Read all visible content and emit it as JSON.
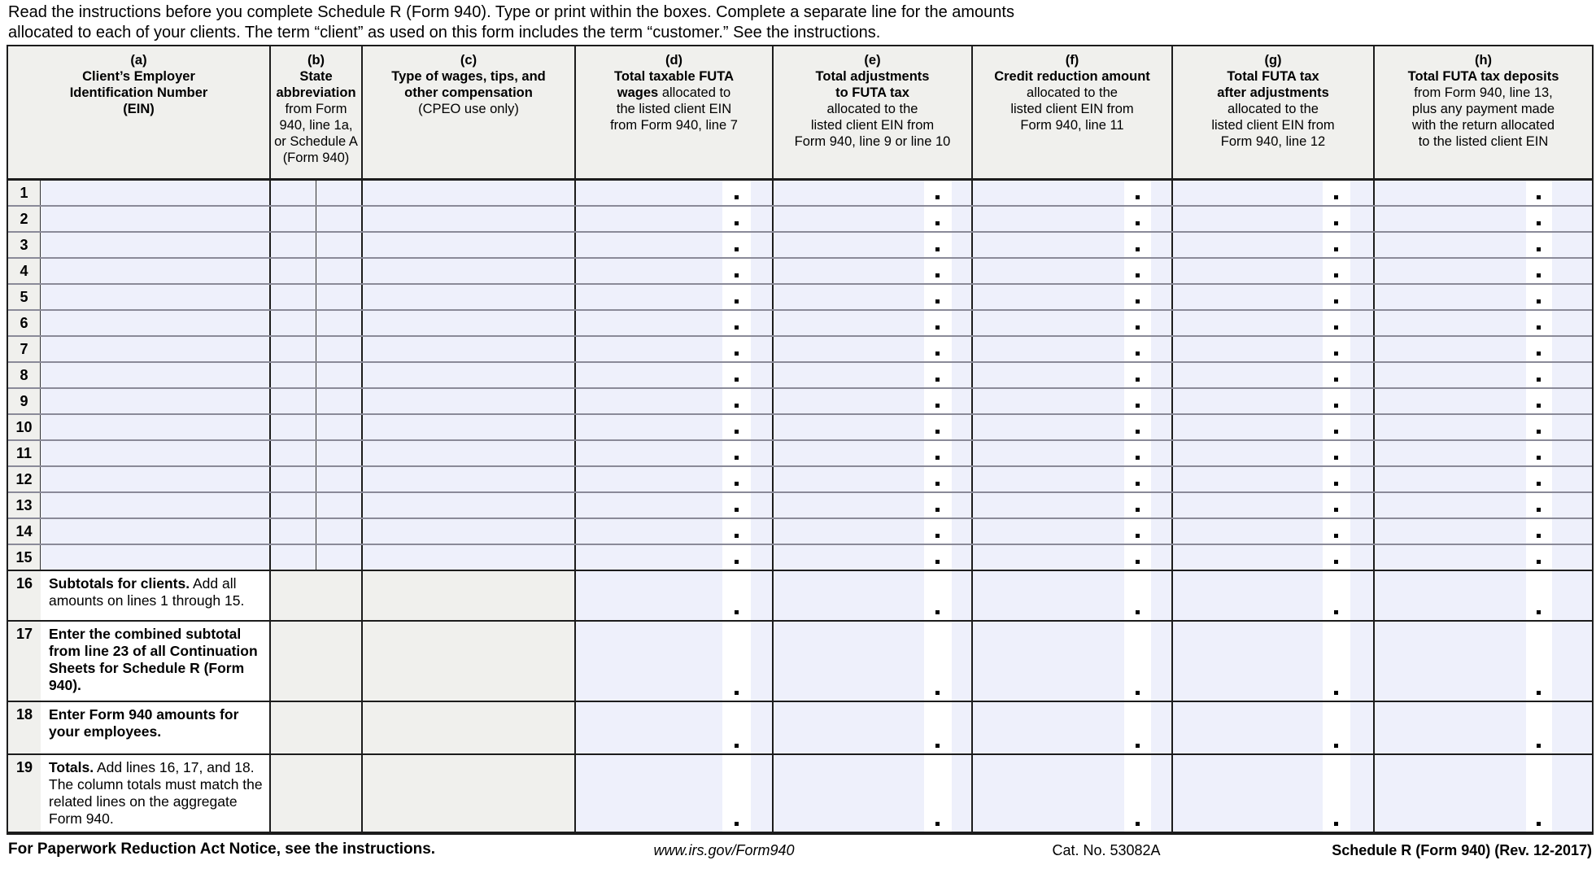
{
  "page": {
    "instructions": "Read the instructions before you complete Schedule R (Form 940). Type or print within the boxes. Complete a separate line for the amounts\nallocated to each of your clients. The term “client” as used on this form includes the term “customer.” See the instructions.",
    "footer": {
      "left": "For Paperwork Reduction Act Notice, see the instructions.",
      "url": "www.irs.gov/Form940",
      "cat": "Cat. No. 53082A",
      "right": "Schedule R (Form 940) (Rev. 12-2017)"
    }
  },
  "table": {
    "headers": [
      {
        "letter": "(a)",
        "bold": "Client’s Employer\nIdentification Number\n(EIN)",
        "rest": ""
      },
      {
        "letter": "(b)",
        "bold": "State\nabbreviation",
        "rest": "\nfrom Form\n940, line 1a,\nor Schedule A\n(Form 940)"
      },
      {
        "letter": "(c)",
        "bold": "Type of wages, tips, and\nother compensation",
        "rest": "\n(CPEO use only)"
      },
      {
        "letter": "(d)",
        "bold": "Total taxable FUTA\nwages",
        "rest": " allocated to\nthe listed client EIN\nfrom Form 940, line 7"
      },
      {
        "letter": "(e)",
        "bold": "Total adjustments\nto FUTA tax",
        "rest": "\nallocated to the\nlisted client EIN from\nForm 940, line 9 or line 10"
      },
      {
        "letter": "(f)",
        "bold": "Credit reduction amount",
        "rest": "\nallocated to the\nlisted client EIN from\nForm 940, line 11"
      },
      {
        "letter": "(g)",
        "bold": "Total FUTA tax\nafter adjustments",
        "rest": "\nallocated to the\nlisted client EIN from\nForm 940, line 12"
      },
      {
        "letter": "(h)",
        "bold": "Total FUTA tax deposits",
        "rest": "\nfrom Form 940, line 13,\nplus any payment made\nwith the return allocated\nto the listed client EIN"
      }
    ],
    "row_numbers": [
      "1",
      "2",
      "3",
      "4",
      "5",
      "6",
      "7",
      "8",
      "9",
      "10",
      "11",
      "12",
      "13",
      "14",
      "15"
    ],
    "summary_rows": [
      {
        "num": "16",
        "bold": "Subtotals for clients.",
        "rest": " Add all amounts on lines 1 through 15."
      },
      {
        "num": "17",
        "bold": "Enter the combined subtotal from line 23 of all Continuation Sheets for Schedule R (Form 940).",
        "rest": ""
      },
      {
        "num": "18",
        "bold": "Enter Form 940 amounts for your employees.",
        "rest": ""
      },
      {
        "num": "19",
        "bold": "Totals.",
        "rest": " Add lines 16, 17, and 18. The column totals must match the related lines on the aggregate Form 940."
      }
    ]
  },
  "colors": {
    "input_field": "#eef0fb",
    "shaded_cell": "#f0f0ed",
    "grid_line": "#1c1c1c",
    "row_separator": "#8a8a98"
  }
}
